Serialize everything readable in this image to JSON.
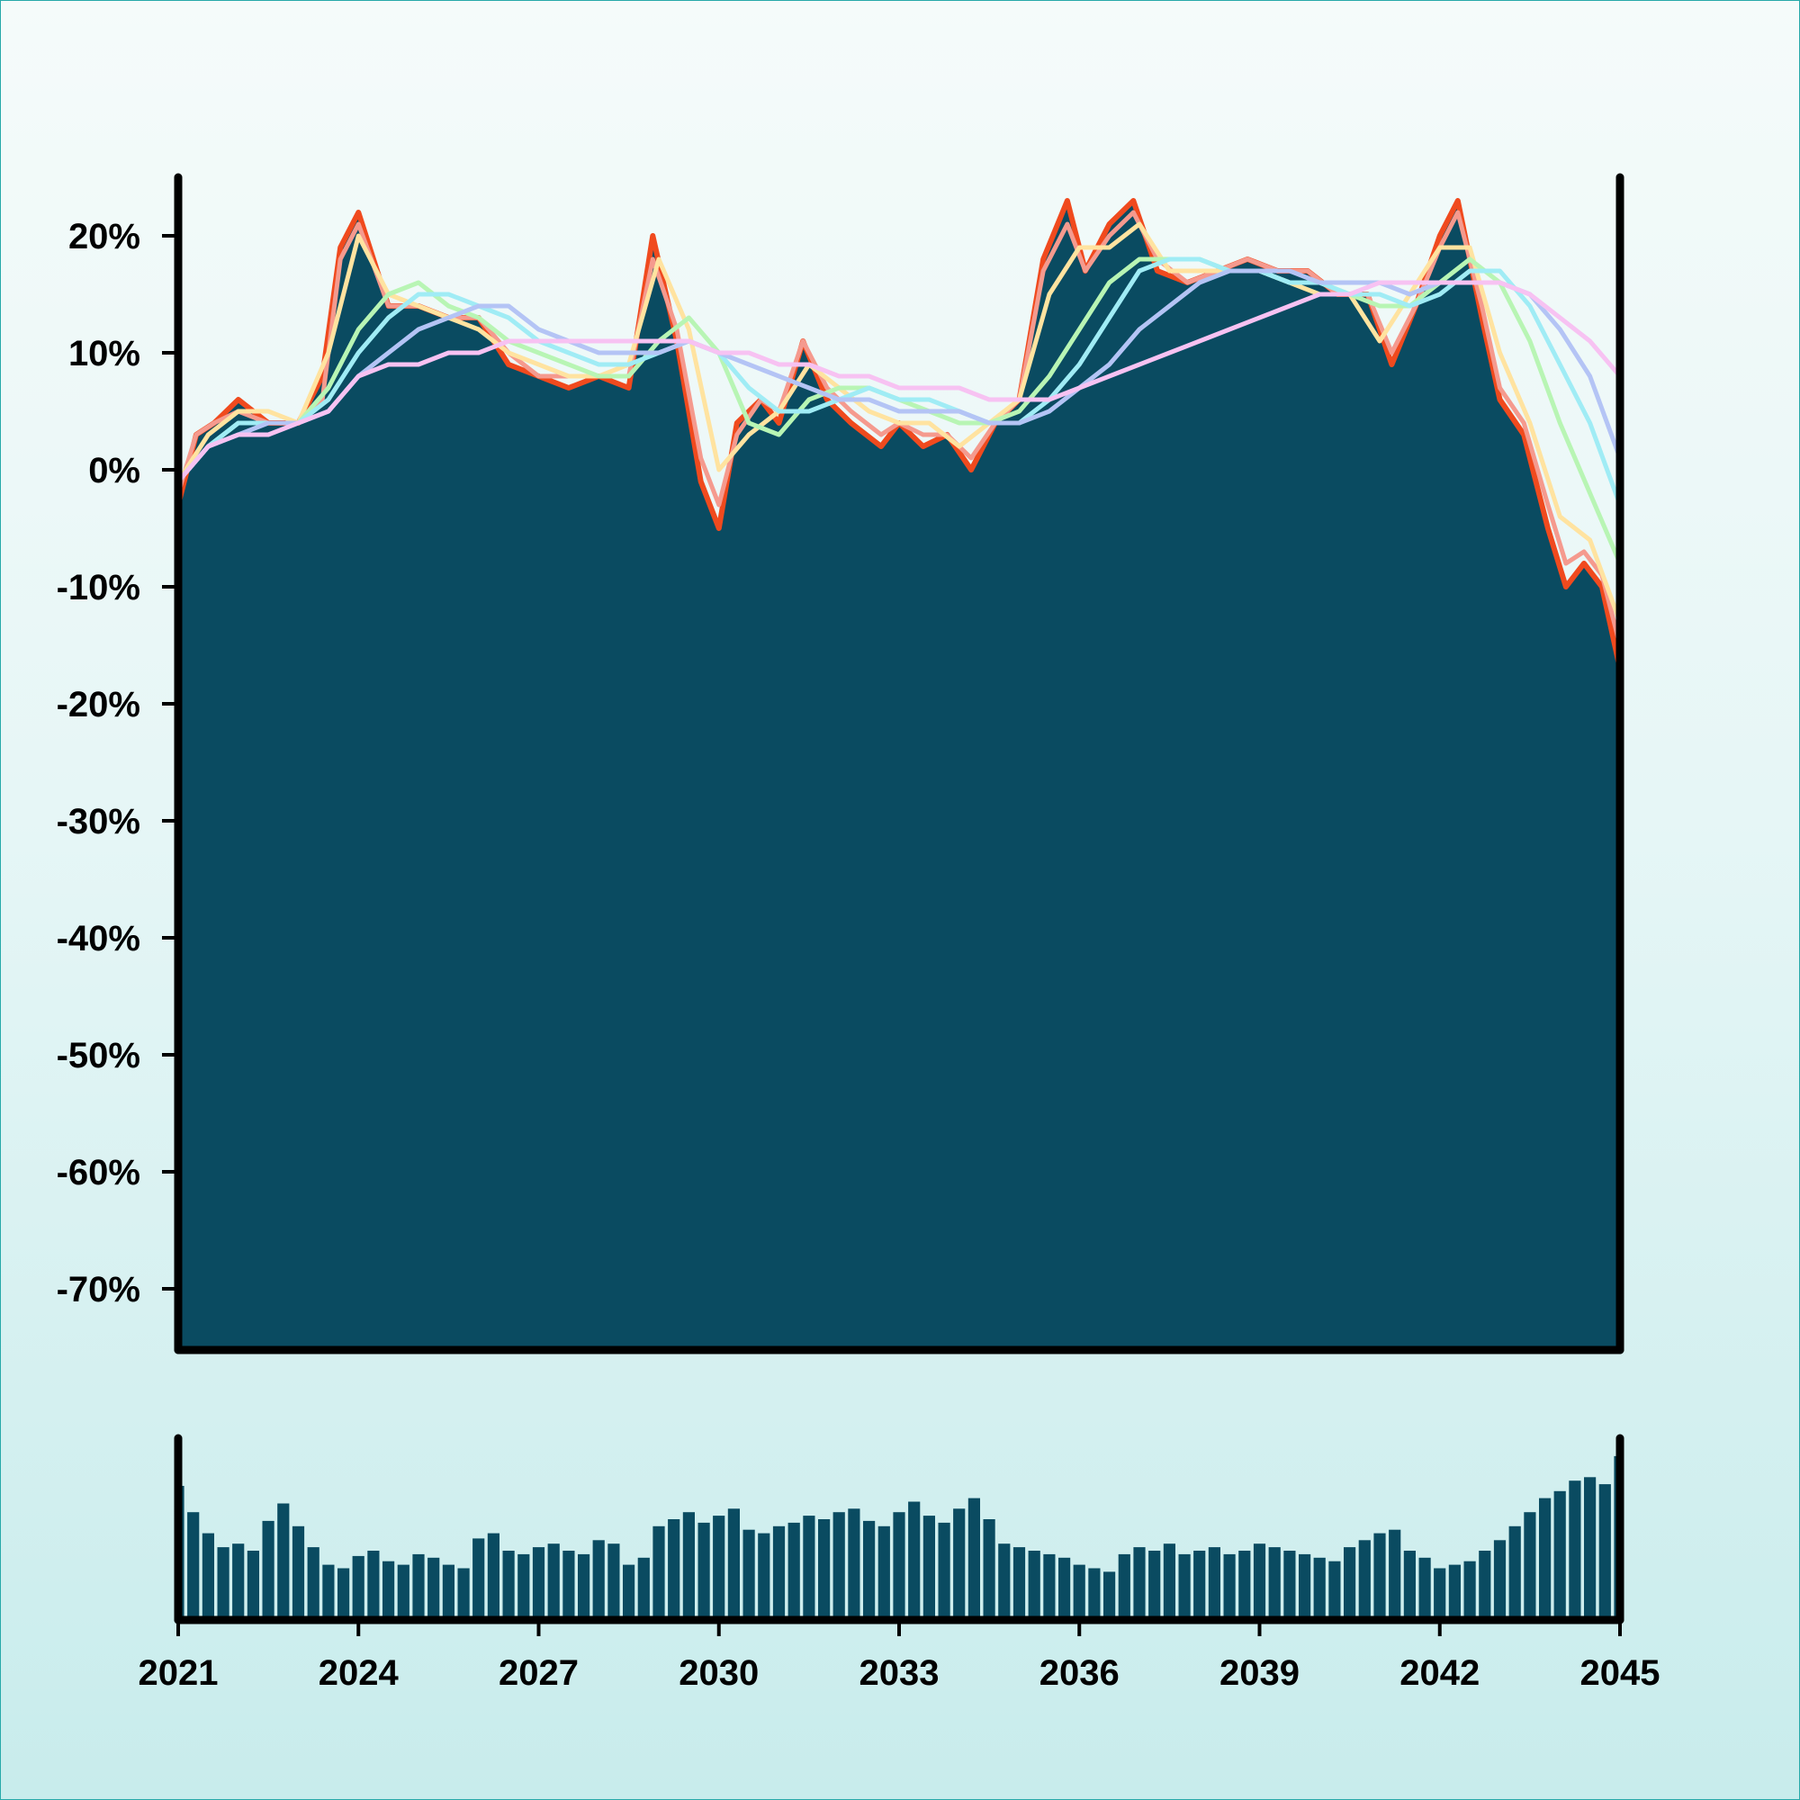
{
  "chart_data": [
    {
      "type": "area",
      "title": "",
      "xlabel": "",
      "ylabel": "",
      "xlim": [
        2021,
        2045
      ],
      "ylim": [
        -75,
        25
      ],
      "grid": false,
      "y_ticks": [
        {
          "value": 20,
          "label": "20%"
        },
        {
          "value": 10,
          "label": "10%"
        },
        {
          "value": 0,
          "label": "0%"
        },
        {
          "value": -10,
          "label": "-10%"
        },
        {
          "value": -20,
          "label": "-20%"
        },
        {
          "value": -30,
          "label": "-30%"
        },
        {
          "value": -40,
          "label": "-40%"
        },
        {
          "value": -50,
          "label": "-50%"
        },
        {
          "value": -60,
          "label": "-60%"
        },
        {
          "value": -70,
          "label": "-70%"
        }
      ],
      "x_ticks": [
        {
          "value": 2021,
          "label": "2021"
        },
        {
          "value": 2024,
          "label": "2024"
        },
        {
          "value": 2027,
          "label": "2027"
        },
        {
          "value": 2030,
          "label": "2030"
        },
        {
          "value": 2033,
          "label": "2033"
        },
        {
          "value": 2036,
          "label": "2036"
        },
        {
          "value": 2039,
          "label": "2039"
        },
        {
          "value": 2042,
          "label": "2042"
        },
        {
          "value": 2045,
          "label": "2045"
        }
      ],
      "fill_color": "#0a4b61",
      "raw_line_color": "#f04a1e",
      "series": [
        {
          "color": "#f04a1e",
          "x": [
            2021.0,
            2021.3,
            2021.6,
            2022.0,
            2022.5,
            2023.0,
            2023.4,
            2023.7,
            2024.0,
            2024.5,
            2025.0,
            2025.5,
            2026.0,
            2026.5,
            2027.0,
            2027.5,
            2028.0,
            2028.5,
            2028.9,
            2029.3,
            2029.7,
            2030.0,
            2030.3,
            2030.7,
            2031.0,
            2031.4,
            2031.8,
            2032.2,
            2032.7,
            2033.0,
            2033.4,
            2033.8,
            2034.2,
            2034.6,
            2035.0,
            2035.4,
            2035.8,
            2036.1,
            2036.5,
            2036.9,
            2037.3,
            2037.8,
            2038.3,
            2038.8,
            2039.3,
            2039.8,
            2040.3,
            2040.8,
            2041.2,
            2041.6,
            2042.0,
            2042.3,
            2042.7,
            2043.0,
            2043.4,
            2043.8,
            2044.1,
            2044.4,
            2044.7,
            2045.0
          ],
          "y": [
            -3,
            3,
            4,
            6,
            4,
            4,
            8,
            19,
            22,
            14,
            14,
            13,
            13,
            9,
            8,
            7,
            8,
            7,
            20,
            11,
            -1,
            -5,
            4,
            6,
            4,
            11,
            6,
            4,
            2,
            4,
            2,
            3,
            0,
            4,
            6,
            18,
            23,
            17,
            21,
            23,
            17,
            16,
            17,
            18,
            17,
            17,
            15,
            15,
            9,
            14,
            20,
            23,
            13,
            6,
            3,
            -5,
            -10,
            -8,
            -10,
            -17
          ]
        },
        {
          "color": "#f59a8e",
          "x": [
            2021.0,
            2021.3,
            2021.6,
            2022.0,
            2022.5,
            2023.0,
            2023.4,
            2023.7,
            2024.0,
            2024.5,
            2025.0,
            2025.5,
            2026.0,
            2026.5,
            2027.0,
            2027.5,
            2028.0,
            2028.5,
            2028.9,
            2029.3,
            2029.7,
            2030.0,
            2030.3,
            2030.7,
            2031.0,
            2031.4,
            2031.8,
            2032.2,
            2032.7,
            2033.0,
            2033.4,
            2033.8,
            2034.2,
            2034.6,
            2035.0,
            2035.4,
            2035.8,
            2036.1,
            2036.5,
            2036.9,
            2037.3,
            2037.8,
            2038.3,
            2038.8,
            2039.3,
            2039.8,
            2040.3,
            2040.8,
            2041.2,
            2041.6,
            2042.0,
            2042.3,
            2042.7,
            2043.0,
            2043.4,
            2043.8,
            2044.1,
            2044.4,
            2044.7,
            2045.0
          ],
          "y": [
            -2,
            3,
            4,
            5,
            4,
            4,
            6,
            18,
            21,
            14,
            14,
            13,
            13,
            10,
            8,
            8,
            8,
            8,
            18,
            12,
            1,
            -3,
            3,
            6,
            5,
            11,
            7,
            5,
            3,
            4,
            3,
            3,
            1,
            4,
            6,
            17,
            21,
            17,
            20,
            22,
            18,
            16,
            17,
            18,
            17,
            17,
            15,
            15,
            10,
            14,
            19,
            22,
            14,
            7,
            4,
            -3,
            -8,
            -7,
            -9,
            -15
          ]
        },
        {
          "color": "#ffe3a0",
          "x": [
            2021.0,
            2021.5,
            2022.0,
            2022.5,
            2023.0,
            2023.5,
            2024.0,
            2024.5,
            2025.0,
            2025.5,
            2026.0,
            2026.5,
            2027.0,
            2027.5,
            2028.0,
            2028.5,
            2029.0,
            2029.5,
            2030.0,
            2030.5,
            2031.0,
            2031.5,
            2032.0,
            2032.5,
            2033.0,
            2033.5,
            2034.0,
            2034.5,
            2035.0,
            2035.5,
            2036.0,
            2036.5,
            2037.0,
            2037.5,
            2038.0,
            2038.5,
            2039.0,
            2039.5,
            2040.0,
            2040.5,
            2041.0,
            2041.5,
            2042.0,
            2042.5,
            2043.0,
            2043.5,
            2044.0,
            2044.5,
            2045.0
          ],
          "y": [
            -1,
            3,
            5,
            5,
            4,
            10,
            20,
            15,
            14,
            13,
            12,
            10,
            9,
            8,
            8,
            9,
            18,
            12,
            0,
            3,
            5,
            9,
            7,
            5,
            4,
            4,
            2,
            4,
            6,
            15,
            19,
            19,
            21,
            17,
            17,
            17,
            17,
            16,
            15,
            15,
            11,
            15,
            19,
            19,
            10,
            4,
            -4,
            -6,
            -13
          ]
        },
        {
          "color": "#b8f5b4",
          "x": [
            2021.0,
            2021.5,
            2022.0,
            2022.5,
            2023.0,
            2023.5,
            2024.0,
            2024.5,
            2025.0,
            2025.5,
            2026.0,
            2026.5,
            2027.0,
            2027.5,
            2028.0,
            2028.5,
            2029.0,
            2029.5,
            2030.0,
            2030.5,
            2031.0,
            2031.5,
            2032.0,
            2032.5,
            2033.0,
            2033.5,
            2034.0,
            2034.5,
            2035.0,
            2035.5,
            2036.0,
            2036.5,
            2037.0,
            2037.5,
            2038.0,
            2038.5,
            2039.0,
            2039.5,
            2040.0,
            2040.5,
            2041.0,
            2041.5,
            2042.0,
            2042.5,
            2043.0,
            2043.5,
            2044.0,
            2044.5,
            2045.0
          ],
          "y": [
            -1,
            2,
            4,
            4,
            4,
            7,
            12,
            15,
            16,
            14,
            13,
            11,
            10,
            9,
            8,
            8,
            11,
            13,
            10,
            4,
            3,
            6,
            7,
            7,
            6,
            5,
            4,
            4,
            5,
            8,
            12,
            16,
            18,
            18,
            18,
            17,
            17,
            16,
            16,
            15,
            14,
            14,
            16,
            18,
            16,
            11,
            4,
            -2,
            -8
          ]
        },
        {
          "color": "#a0ecf5",
          "x": [
            2021.0,
            2021.5,
            2022.0,
            2022.5,
            2023.0,
            2023.5,
            2024.0,
            2024.5,
            2025.0,
            2025.5,
            2026.0,
            2026.5,
            2027.0,
            2027.5,
            2028.0,
            2028.5,
            2029.0,
            2029.5,
            2030.0,
            2030.5,
            2031.0,
            2031.5,
            2032.0,
            2032.5,
            2033.0,
            2033.5,
            2034.0,
            2034.5,
            2035.0,
            2035.5,
            2036.0,
            2036.5,
            2037.0,
            2037.5,
            2038.0,
            2038.5,
            2039.0,
            2039.5,
            2040.0,
            2040.5,
            2041.0,
            2041.5,
            2042.0,
            2042.5,
            2043.0,
            2043.5,
            2044.0,
            2044.5,
            2045.0
          ],
          "y": [
            -1,
            2,
            4,
            4,
            4,
            6,
            10,
            13,
            15,
            15,
            14,
            13,
            11,
            10,
            9,
            9,
            10,
            11,
            10,
            7,
            5,
            5,
            6,
            7,
            6,
            6,
            5,
            4,
            4,
            6,
            9,
            13,
            17,
            18,
            18,
            17,
            17,
            16,
            16,
            15,
            15,
            14,
            15,
            17,
            17,
            14,
            9,
            4,
            -3
          ]
        },
        {
          "color": "#b4c4f5",
          "x": [
            2021.0,
            2021.5,
            2022.0,
            2022.5,
            2023.0,
            2023.5,
            2024.0,
            2024.5,
            2025.0,
            2025.5,
            2026.0,
            2026.5,
            2027.0,
            2027.5,
            2028.0,
            2028.5,
            2029.0,
            2029.5,
            2030.0,
            2030.5,
            2031.0,
            2031.5,
            2032.0,
            2032.5,
            2033.0,
            2033.5,
            2034.0,
            2034.5,
            2035.0,
            2035.5,
            2036.0,
            2036.5,
            2037.0,
            2037.5,
            2038.0,
            2038.5,
            2039.0,
            2039.5,
            2040.0,
            2040.5,
            2041.0,
            2041.5,
            2042.0,
            2042.5,
            2043.0,
            2043.5,
            2044.0,
            2044.5,
            2045.0
          ],
          "y": [
            -1,
            2,
            3,
            4,
            4,
            5,
            8,
            10,
            12,
            13,
            14,
            14,
            12,
            11,
            10,
            10,
            10,
            11,
            10,
            9,
            8,
            7,
            6,
            6,
            5,
            5,
            5,
            4,
            4,
            5,
            7,
            9,
            12,
            14,
            16,
            17,
            17,
            17,
            16,
            16,
            16,
            15,
            16,
            16,
            16,
            15,
            12,
            8,
            1
          ]
        },
        {
          "color": "#f7c2f2",
          "x": [
            2021.0,
            2021.5,
            2022.0,
            2022.5,
            2023.0,
            2023.5,
            2024.0,
            2024.5,
            2025.0,
            2025.5,
            2026.0,
            2026.5,
            2027.0,
            2027.5,
            2028.0,
            2028.5,
            2029.0,
            2029.5,
            2030.0,
            2030.5,
            2031.0,
            2031.5,
            2032.0,
            2032.5,
            2033.0,
            2033.5,
            2034.0,
            2034.5,
            2035.0,
            2035.5,
            2036.0,
            2036.5,
            2037.0,
            2037.5,
            2038.0,
            2038.5,
            2039.0,
            2039.5,
            2040.0,
            2040.5,
            2041.0,
            2041.5,
            2042.0,
            2042.5,
            2043.0,
            2043.5,
            2044.0,
            2044.5,
            2045.0
          ],
          "y": [
            -1,
            2,
            3,
            3,
            4,
            5,
            8,
            9,
            9,
            10,
            10,
            11,
            11,
            11,
            11,
            11,
            11,
            11,
            10,
            10,
            9,
            9,
            8,
            8,
            7,
            7,
            7,
            6,
            6,
            6,
            7,
            8,
            9,
            10,
            11,
            12,
            13,
            14,
            15,
            15,
            16,
            16,
            16,
            16,
            16,
            15,
            13,
            11,
            8
          ]
        }
      ]
    },
    {
      "type": "bar",
      "title": "",
      "xlim": [
        2021,
        2045
      ],
      "grid": false,
      "color": "#0a4b61",
      "x": [
        2021.0,
        2021.25,
        2021.5,
        2021.75,
        2022.0,
        2022.25,
        2022.5,
        2022.75,
        2023.0,
        2023.25,
        2023.5,
        2023.75,
        2024.0,
        2024.25,
        2024.5,
        2024.75,
        2025.0,
        2025.25,
        2025.5,
        2025.75,
        2026.0,
        2026.25,
        2026.5,
        2026.75,
        2027.0,
        2027.25,
        2027.5,
        2027.75,
        2028.0,
        2028.25,
        2028.5,
        2028.75,
        2029.0,
        2029.25,
        2029.5,
        2029.75,
        2030.0,
        2030.25,
        2030.5,
        2030.75,
        2031.0,
        2031.25,
        2031.5,
        2031.75,
        2032.0,
        2032.25,
        2032.5,
        2032.75,
        2033.0,
        2033.25,
        2033.5,
        2033.75,
        2034.0,
        2034.25,
        2034.5,
        2034.75,
        2035.0,
        2035.25,
        2035.5,
        2035.75,
        2036.0,
        2036.25,
        2036.5,
        2036.75,
        2037.0,
        2037.25,
        2037.5,
        2037.75,
        2038.0,
        2038.25,
        2038.5,
        2038.75,
        2039.0,
        2039.25,
        2039.5,
        2039.75,
        2040.0,
        2040.25,
        2040.5,
        2040.75,
        2041.0,
        2041.25,
        2041.5,
        2041.75,
        2042.0,
        2042.25,
        2042.5,
        2042.75,
        2043.0,
        2043.25,
        2043.5,
        2043.75,
        2044.0,
        2044.25,
        2044.5,
        2044.75,
        2045.0
      ],
      "values": [
        75,
        60,
        48,
        40,
        42,
        38,
        55,
        65,
        52,
        40,
        30,
        28,
        35,
        38,
        32,
        30,
        36,
        34,
        30,
        28,
        45,
        48,
        38,
        36,
        40,
        42,
        38,
        36,
        44,
        42,
        30,
        34,
        52,
        56,
        60,
        54,
        58,
        62,
        50,
        48,
        52,
        54,
        58,
        56,
        60,
        62,
        55,
        52,
        60,
        66,
        58,
        54,
        62,
        68,
        56,
        42,
        40,
        38,
        36,
        34,
        30,
        28,
        26,
        36,
        40,
        38,
        42,
        36,
        38,
        40,
        36,
        38,
        42,
        40,
        38,
        36,
        34,
        32,
        40,
        44,
        48,
        50,
        38,
        34,
        28,
        30,
        32,
        38,
        44,
        52,
        60,
        68,
        72,
        78,
        80,
        76,
        92
      ]
    }
  ]
}
